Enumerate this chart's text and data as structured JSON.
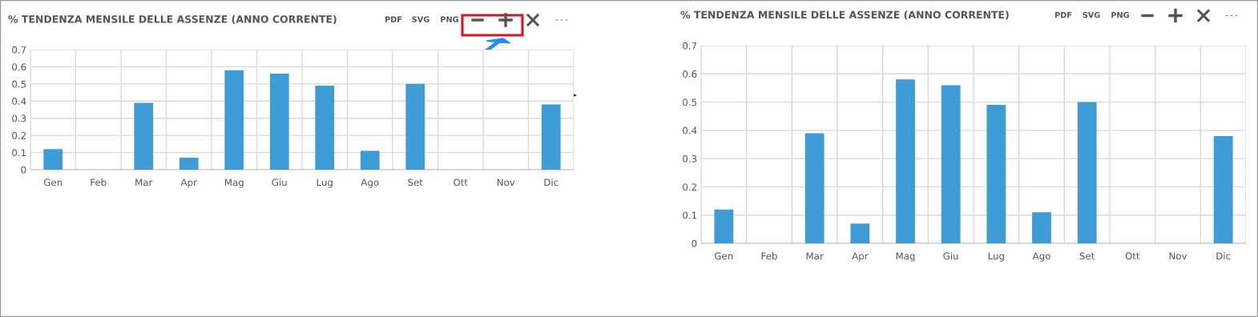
{
  "chart_data": [
    {
      "type": "bar",
      "title": "% TENDENZA MENSILE DELLE ASSENZE (ANNO CORRENTE)",
      "categories": [
        "Gen",
        "Feb",
        "Mar",
        "Apr",
        "Mag",
        "Giu",
        "Lug",
        "Ago",
        "Set",
        "Ott",
        "Nov",
        "Dic"
      ],
      "values": [
        0.12,
        0,
        0.39,
        0.07,
        0.58,
        0.56,
        0.49,
        0.11,
        0.5,
        0,
        0,
        0.38
      ],
      "color": "#3d9bd6",
      "ylim": [
        0,
        0.7
      ],
      "yticks": [
        0,
        0.1,
        0.2,
        0.3,
        0.4,
        0.5,
        0.6,
        0.7
      ],
      "grid": true,
      "legend": false,
      "annotations": [
        "PDF",
        "SVG",
        "PNG"
      ]
    },
    {
      "type": "bar",
      "title": "% TENDENZA MENSILE DELLE ASSENZE (ANNO CORRENTE)",
      "categories": [
        "Gen",
        "Feb",
        "Mar",
        "Apr",
        "Mag",
        "Giu",
        "Lug",
        "Ago",
        "Set",
        "Ott",
        "Nov",
        "Dic"
      ],
      "values": [
        0.12,
        0,
        0.39,
        0.07,
        0.58,
        0.56,
        0.49,
        0.11,
        0.5,
        0,
        0,
        0.38
      ],
      "color": "#3d9bd6",
      "ylim": [
        0,
        0.7
      ],
      "yticks": [
        0,
        0.1,
        0.2,
        0.3,
        0.4,
        0.5,
        0.6,
        0.7
      ],
      "grid": true,
      "legend": false,
      "annotations": [
        "PDF",
        "SVG",
        "PNG"
      ]
    }
  ]
}
